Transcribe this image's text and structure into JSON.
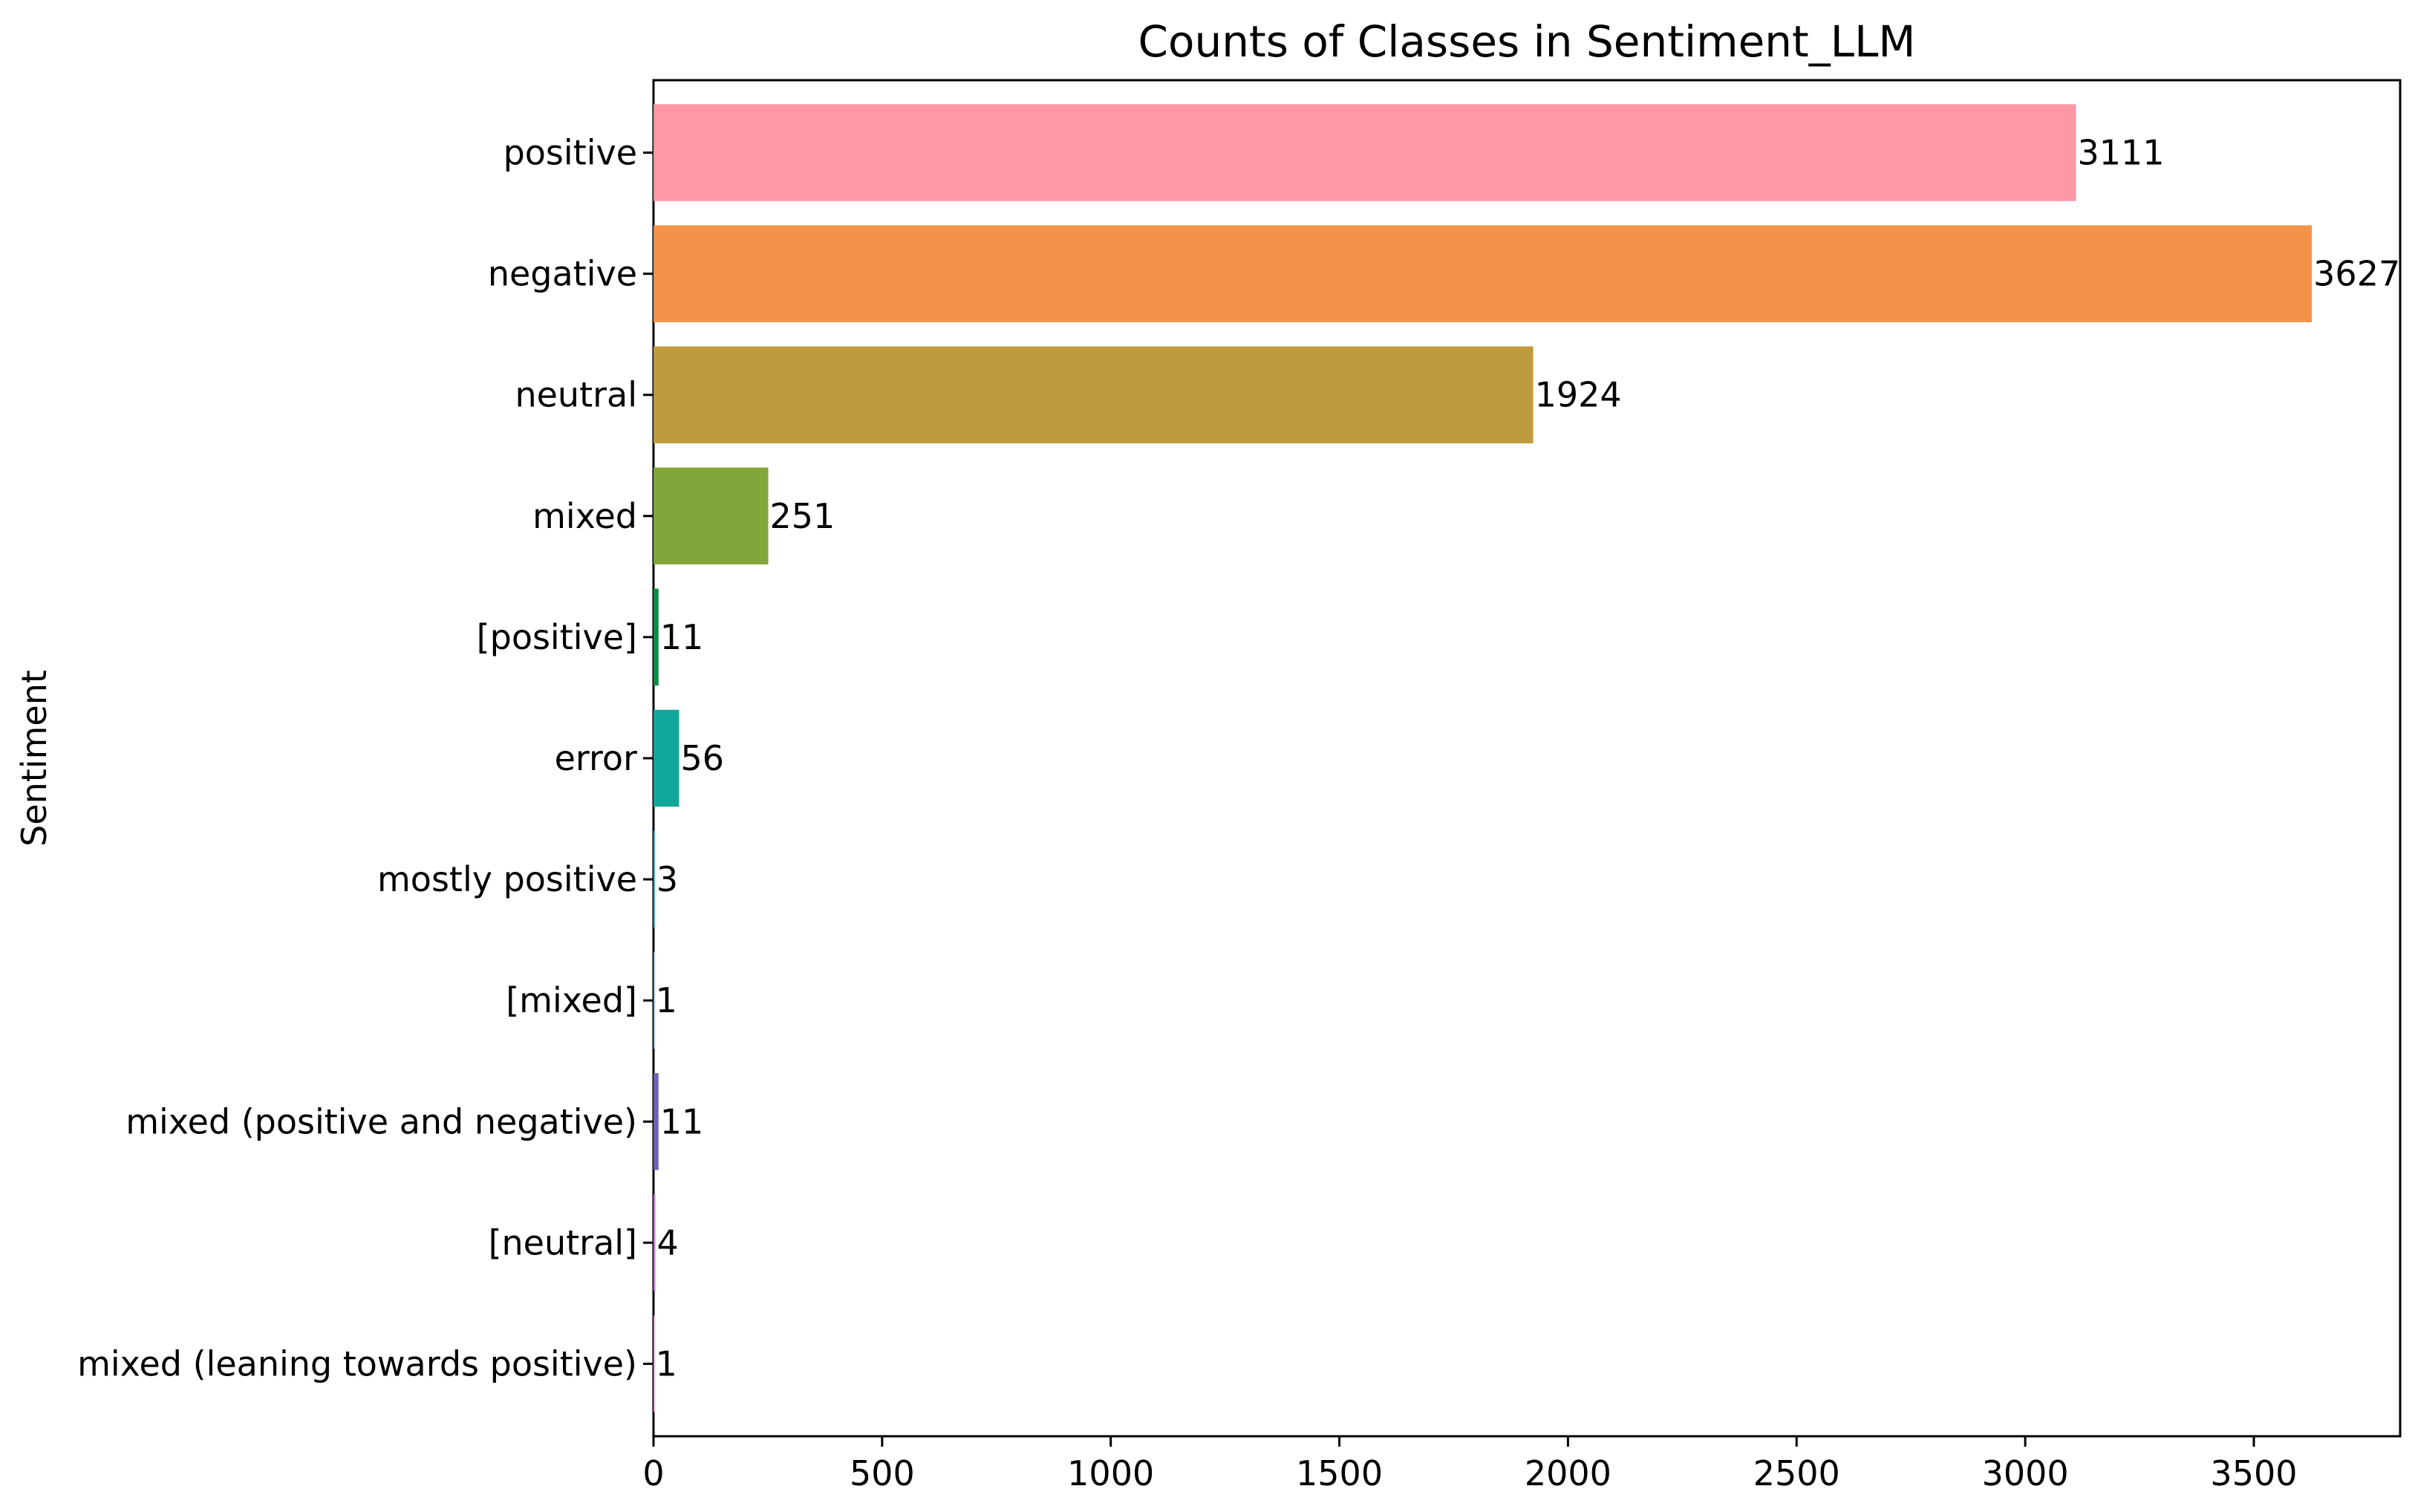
{
  "chart_data": {
    "type": "bar",
    "orientation": "horizontal",
    "title": "Counts of Classes in Sentiment_LLM",
    "xlabel": "",
    "ylabel": "Sentiment",
    "categories": [
      "positive",
      "negative",
      "neutral",
      "mixed",
      "[positive]",
      "error",
      "mostly positive",
      "[mixed]",
      "mixed (positive and negative)",
      "[neutral]",
      "mixed (leaning towards positive)"
    ],
    "values": [
      3111,
      3627,
      1924,
      251,
      11,
      56,
      3,
      1,
      11,
      4,
      1
    ],
    "colors": [
      "#ff97a6",
      "#f4924a",
      "#bc9c3e",
      "#82a63a",
      "#0b8b4a",
      "#12a79b",
      "#2da6c8",
      "#5a8fde",
      "#6e62b8",
      "#c178d6",
      "#f07ab8"
    ],
    "xlim": [
      0,
      3820
    ],
    "xticks": [
      0,
      500,
      1000,
      1500,
      2000,
      2500,
      3000,
      3500
    ],
    "grid": false,
    "data_labels": true
  }
}
